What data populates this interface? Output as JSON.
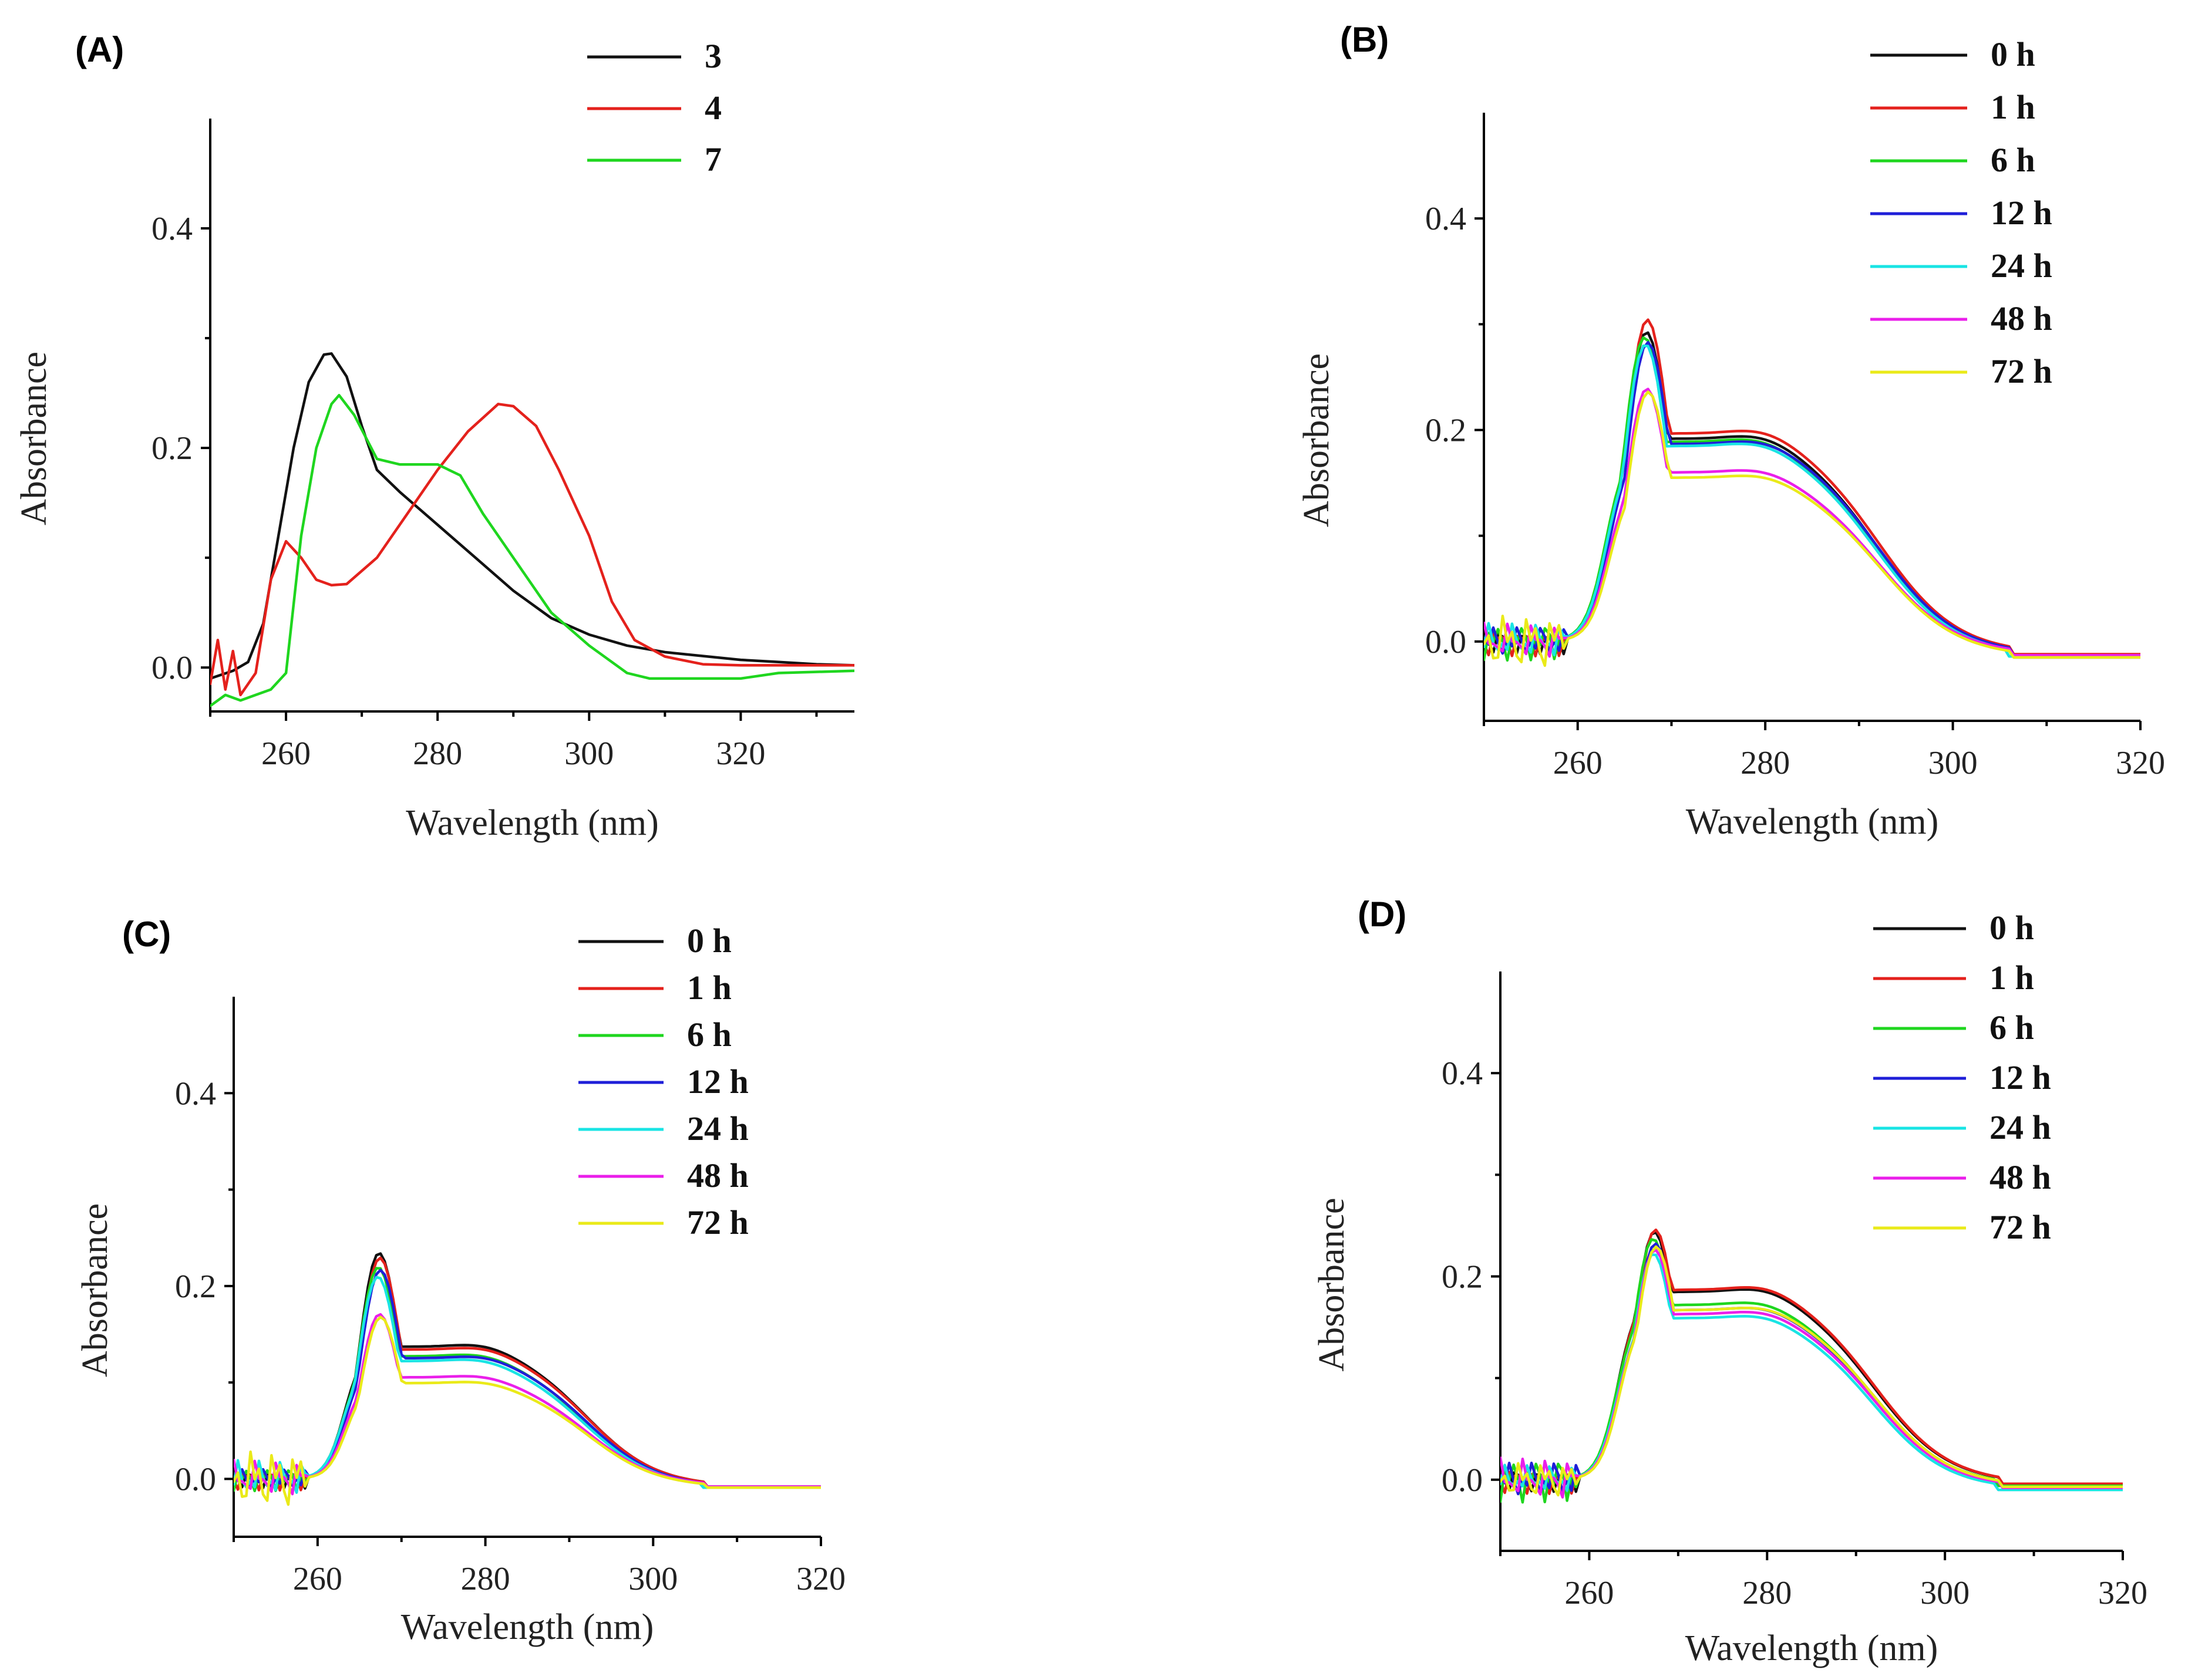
{
  "colors": {
    "black": "#111111",
    "red": "#e4211c",
    "green": "#1fd61f",
    "blue": "#1f1fd8",
    "cyan": "#19e4e4",
    "magenta": "#ea1fea",
    "yellow": "#eaea19"
  },
  "chart_data": [
    {
      "panel": "(A)",
      "type": "line",
      "xlabel": "Wavelength (nm)",
      "ylabel": "Absorbance",
      "xlim": [
        250,
        335
      ],
      "ylim": [
        -0.04,
        0.5
      ],
      "xticks": [
        260,
        280,
        300,
        320
      ],
      "yticks": [
        0.0,
        0.2,
        0.4
      ],
      "ytick_labels": [
        "0.0",
        "0.2",
        "0.4"
      ],
      "legend_position": "top-right",
      "series": [
        {
          "name": "3",
          "color": "#111111",
          "points": [
            [
              250,
              -0.01
            ],
            [
              253,
              -0.003
            ],
            [
              255,
              0.005
            ],
            [
              257,
              0.04
            ],
            [
              259,
              0.12
            ],
            [
              261,
              0.2
            ],
            [
              263,
              0.26
            ],
            [
              265,
              0.285
            ],
            [
              266,
              0.286
            ],
            [
              268,
              0.265
            ],
            [
              270,
              0.22
            ],
            [
              272,
              0.18
            ],
            [
              275,
              0.16
            ],
            [
              280,
              0.13
            ],
            [
              285,
              0.1
            ],
            [
              290,
              0.07
            ],
            [
              295,
              0.045
            ],
            [
              300,
              0.03
            ],
            [
              305,
              0.02
            ],
            [
              310,
              0.014
            ],
            [
              320,
              0.007
            ],
            [
              325,
              0.005
            ],
            [
              330,
              0.003
            ],
            [
              335,
              0.002
            ]
          ]
        },
        {
          "name": "4",
          "color": "#e4211c",
          "points": [
            [
              250,
              -0.015
            ],
            [
              251,
              0.025
            ],
            [
              252,
              -0.02
            ],
            [
              253,
              0.015
            ],
            [
              254,
              -0.025
            ],
            [
              256,
              -0.005
            ],
            [
              258,
              0.08
            ],
            [
              260,
              0.115
            ],
            [
              262,
              0.1
            ],
            [
              264,
              0.08
            ],
            [
              266,
              0.075
            ],
            [
              268,
              0.076
            ],
            [
              272,
              0.1
            ],
            [
              276,
              0.14
            ],
            [
              280,
              0.18
            ],
            [
              284,
              0.215
            ],
            [
              288,
              0.24
            ],
            [
              290,
              0.238
            ],
            [
              293,
              0.22
            ],
            [
              296,
              0.18
            ],
            [
              300,
              0.12
            ],
            [
              303,
              0.06
            ],
            [
              306,
              0.025
            ],
            [
              310,
              0.01
            ],
            [
              315,
              0.003
            ],
            [
              320,
              0.002
            ],
            [
              335,
              0.002
            ]
          ]
        },
        {
          "name": "7",
          "color": "#1fd61f",
          "points": [
            [
              250,
              -0.035
            ],
            [
              252,
              -0.025
            ],
            [
              254,
              -0.03
            ],
            [
              256,
              -0.025
            ],
            [
              258,
              -0.02
            ],
            [
              260,
              -0.005
            ],
            [
              262,
              0.12
            ],
            [
              264,
              0.2
            ],
            [
              266,
              0.24
            ],
            [
              267,
              0.248
            ],
            [
              269,
              0.23
            ],
            [
              272,
              0.19
            ],
            [
              275,
              0.185
            ],
            [
              278,
              0.185
            ],
            [
              280,
              0.185
            ],
            [
              283,
              0.175
            ],
            [
              286,
              0.14
            ],
            [
              290,
              0.1
            ],
            [
              295,
              0.05
            ],
            [
              300,
              0.02
            ],
            [
              305,
              -0.005
            ],
            [
              308,
              -0.01
            ],
            [
              315,
              -0.01
            ],
            [
              320,
              -0.01
            ],
            [
              325,
              -0.005
            ],
            [
              335,
              -0.003
            ]
          ]
        }
      ]
    },
    {
      "panel": "(B)",
      "type": "line",
      "xlabel": "Wavelength (nm)",
      "ylabel": "Absorbance",
      "xlim": [
        250,
        320
      ],
      "ylim": [
        -0.075,
        0.5
      ],
      "xticks": [
        260,
        280,
        300,
        320
      ],
      "yticks": [
        0.0,
        0.2,
        0.4
      ],
      "ytick_labels": [
        "0.0",
        "0.2",
        "0.4"
      ],
      "legend_position": "top-right",
      "series": [
        {
          "name": "0 h",
          "color": "#111111",
          "peak": 0.3,
          "shoulder": 0.205,
          "noise": 0.012,
          "tail": -0.015,
          "shift": 0
        },
        {
          "name": "1 h",
          "color": "#e4211c",
          "peak": 0.312,
          "shoulder": 0.21,
          "noise": 0.014,
          "tail": -0.012,
          "shift": 0.1
        },
        {
          "name": "6 h",
          "color": "#1fd61f",
          "peak": 0.295,
          "shoulder": 0.202,
          "noise": 0.02,
          "tail": -0.014,
          "shift": -0.2
        },
        {
          "name": "12 h",
          "color": "#1f1fd8",
          "peak": 0.29,
          "shoulder": 0.2,
          "noise": 0.016,
          "tail": -0.013,
          "shift": 0.15
        },
        {
          "name": "24 h",
          "color": "#19e4e4",
          "peak": 0.288,
          "shoulder": 0.198,
          "noise": 0.018,
          "tail": -0.014,
          "shift": -0.1
        },
        {
          "name": "48 h",
          "color": "#ea1fea",
          "peak": 0.245,
          "shoulder": 0.173,
          "noise": 0.018,
          "tail": -0.013,
          "shift": 0.05
        },
        {
          "name": "72 h",
          "color": "#eaea19",
          "peak": 0.242,
          "shoulder": 0.168,
          "noise": 0.03,
          "tail": -0.015,
          "shift": 0.2
        }
      ]
    },
    {
      "panel": "(C)",
      "type": "line",
      "xlabel": "Wavelength (nm)",
      "ylabel": "Absorbance",
      "xlim": [
        250,
        320
      ],
      "ylim": [
        -0.06,
        0.5
      ],
      "xticks": [
        260,
        280,
        300,
        320
      ],
      "yticks": [
        0.0,
        0.2,
        0.4
      ],
      "ytick_labels": [
        "0.0",
        "0.2",
        "0.4"
      ],
      "legend_position": "top-right",
      "series": [
        {
          "name": "0 h",
          "color": "#111111",
          "peak": 0.24,
          "shoulder": 0.15,
          "noise": 0.01,
          "tail": -0.008,
          "shift": 0
        },
        {
          "name": "1 h",
          "color": "#e4211c",
          "peak": 0.235,
          "shoulder": 0.147,
          "noise": 0.012,
          "tail": -0.008,
          "shift": 0.1
        },
        {
          "name": "6 h",
          "color": "#1fd61f",
          "peak": 0.225,
          "shoulder": 0.14,
          "noise": 0.014,
          "tail": -0.009,
          "shift": -0.1
        },
        {
          "name": "12 h",
          "color": "#1f1fd8",
          "peak": 0.222,
          "shoulder": 0.138,
          "noise": 0.012,
          "tail": -0.009,
          "shift": 0.15
        },
        {
          "name": "24 h",
          "color": "#19e4e4",
          "peak": 0.215,
          "shoulder": 0.135,
          "noise": 0.02,
          "tail": -0.009,
          "shift": -0.15
        },
        {
          "name": "48 h",
          "color": "#ea1fea",
          "peak": 0.175,
          "shoulder": 0.118,
          "noise": 0.02,
          "tail": -0.008,
          "shift": 0.05
        },
        {
          "name": "72 h",
          "color": "#eaea19",
          "peak": 0.172,
          "shoulder": 0.112,
          "noise": 0.035,
          "tail": -0.009,
          "shift": 0.2
        }
      ]
    },
    {
      "panel": "(D)",
      "type": "line",
      "xlabel": "Wavelength (nm)",
      "ylabel": "Absorbance",
      "xlim": [
        250,
        320
      ],
      "ylim": [
        -0.07,
        0.5
      ],
      "xticks": [
        260,
        280,
        300,
        320
      ],
      "yticks": [
        0.0,
        0.2,
        0.4
      ],
      "ytick_labels": [
        "0.0",
        "0.2",
        "0.4"
      ],
      "legend_position": "top-right",
      "series": [
        {
          "name": "0 h",
          "color": "#111111",
          "peak": 0.25,
          "shoulder": 0.198,
          "noise": 0.012,
          "tail": -0.004,
          "shift": 0
        },
        {
          "name": "1 h",
          "color": "#e4211c",
          "peak": 0.252,
          "shoulder": 0.2,
          "noise": 0.014,
          "tail": -0.004,
          "shift": 0.1
        },
        {
          "name": "6 h",
          "color": "#1fd61f",
          "peak": 0.243,
          "shoulder": 0.185,
          "noise": 0.025,
          "tail": -0.006,
          "shift": -0.15
        },
        {
          "name": "12 h",
          "color": "#1f1fd8",
          "peak": 0.238,
          "shoulder": 0.18,
          "noise": 0.02,
          "tail": -0.008,
          "shift": 0.1
        },
        {
          "name": "24 h",
          "color": "#19e4e4",
          "peak": 0.228,
          "shoulder": 0.172,
          "noise": 0.015,
          "tail": -0.01,
          "shift": -0.1
        },
        {
          "name": "48 h",
          "color": "#ea1fea",
          "peak": 0.232,
          "shoulder": 0.176,
          "noise": 0.022,
          "tail": -0.008,
          "shift": 0.05
        },
        {
          "name": "72 h",
          "color": "#eaea19",
          "peak": 0.235,
          "shoulder": 0.18,
          "noise": 0.02,
          "tail": -0.007,
          "shift": 0.2
        }
      ]
    }
  ]
}
